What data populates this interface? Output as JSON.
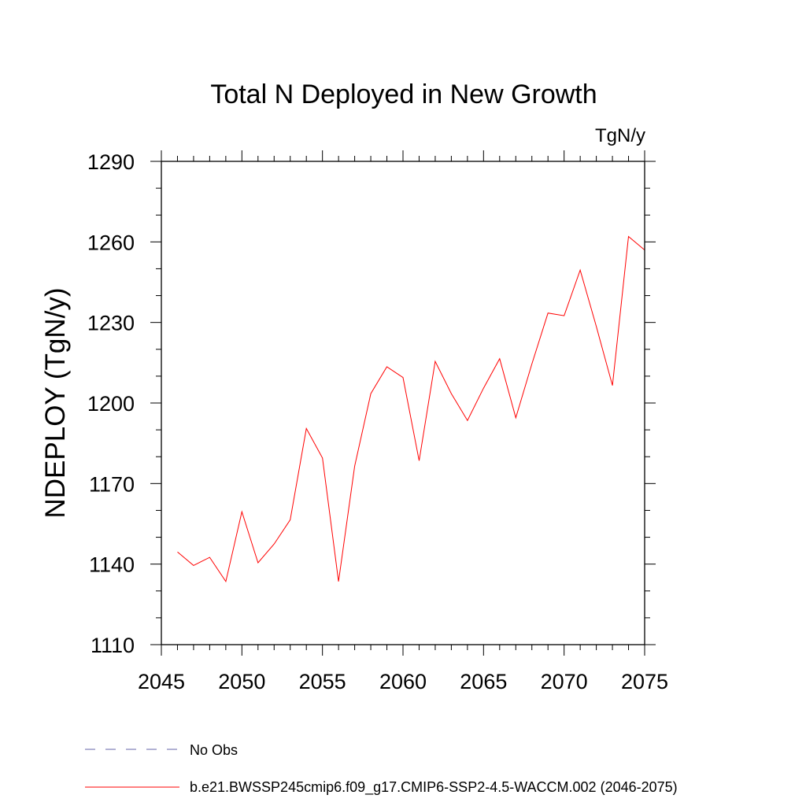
{
  "chart_data": {
    "type": "line",
    "title": "Total N Deployed in New Growth",
    "units": "TgN/y",
    "xlabel": "",
    "ylabel": "NDEPLOY  (TgN/y)",
    "xlim": [
      2045,
      2075
    ],
    "ylim": [
      1110,
      1290
    ],
    "xticks": [
      2045,
      2050,
      2055,
      2060,
      2065,
      2070,
      2075
    ],
    "yticks": [
      1110,
      1140,
      1170,
      1200,
      1230,
      1260,
      1290
    ],
    "grid": false,
    "series": [
      {
        "name": "b.e21.BWSSP245cmip6.f09_g17.CMIP6-SSP2-4.5-WACCM.002 (2046-2075)",
        "color": "#ff0000",
        "x": [
          2046,
          2047,
          2048,
          2049,
          2050,
          2051,
          2052,
          2053,
          2054,
          2055,
          2056,
          2057,
          2058,
          2059,
          2060,
          2061,
          2062,
          2063,
          2064,
          2065,
          2066,
          2067,
          2068,
          2069,
          2070,
          2071,
          2072,
          2073,
          2074,
          2075
        ],
        "values": [
          1144.5,
          1139.5,
          1142.5,
          1133.5,
          1159.5,
          1140.5,
          1147.5,
          1156.5,
          1190.5,
          1179.5,
          1133.5,
          1176.5,
          1203.5,
          1213.5,
          1209.5,
          1178.5,
          1215.5,
          1203.5,
          1193.5,
          1205.5,
          1216.5,
          1194.5,
          1214.5,
          1233.5,
          1232.5,
          1249.5,
          1228.5,
          1206.5,
          1262.0,
          1257.0
        ]
      }
    ],
    "legend": {
      "placement": "bottom",
      "entries": [
        {
          "label": "No Obs",
          "color": "#6666aa",
          "style": "dashed"
        },
        {
          "label": "b.e21.BWSSP245cmip6.f09_g17.CMIP6-SSP2-4.5-WACCM.002 (2046-2075)",
          "color": "#ff0000",
          "style": "solid"
        }
      ]
    }
  }
}
